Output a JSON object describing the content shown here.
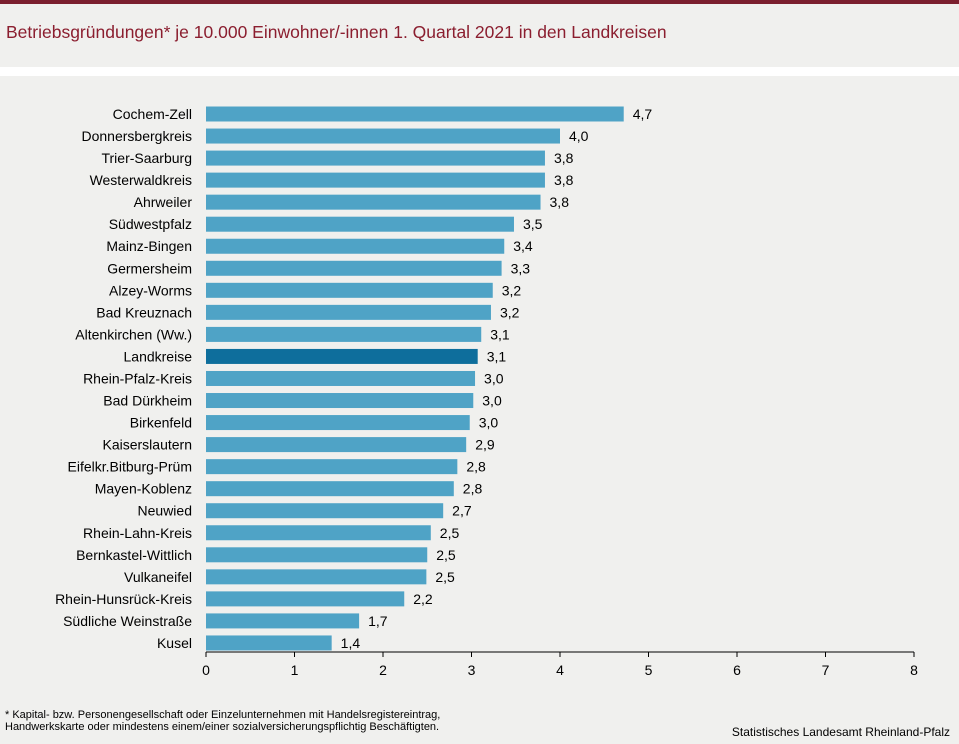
{
  "header": {
    "title": "Betriebsgründungen* je 10.000 Einwohner/-innen 1. Quartal 2021  in den Landkreisen"
  },
  "footer": {
    "footnote": "* Kapital- bzw. Personengesellschaft oder Einzelunternehmen mit Handelsregistereintrag,\nHandwerkskarte oder mindestens einem/einer sozialversicherungspflichtig Beschäftigten.",
    "source": "Statistisches Landesamt Rheinland-Pfalz"
  },
  "colors": {
    "bar": "#4fa3c6",
    "highlight": "#0e6e9c",
    "title": "#8b1e2f"
  },
  "chart_data": {
    "type": "bar",
    "orientation": "horizontal",
    "title": "Betriebsgründungen* je 10.000 Einwohner/-innen 1. Quartal 2021  in den Landkreisen",
    "xlabel": "",
    "ylabel": "",
    "xlim": [
      0,
      8
    ],
    "ticks": [
      0,
      1,
      2,
      3,
      4,
      5,
      6,
      7,
      8
    ],
    "grid": false,
    "highlight": "Landkreise",
    "categories": [
      "Cochem-Zell",
      "Donnersbergkreis",
      "Trier-Saarburg",
      "Westerwaldkreis",
      "Ahrweiler",
      "Südwestpfalz",
      "Mainz-Bingen",
      "Germersheim",
      "Alzey-Worms",
      "Bad Kreuznach",
      "Altenkirchen (Ww.)",
      "Landkreise",
      "Rhein-Pfalz-Kreis",
      "Bad Dürkheim",
      "Birkenfeld",
      "Kaiserslautern",
      "Eifelkr.Bitburg-Prüm",
      "Mayen-Koblenz",
      "Neuwied",
      "Rhein-Lahn-Kreis",
      "Bernkastel-Wittlich",
      "Vulkaneifel",
      "Rhein-Hunsrück-Kreis",
      "Südliche Weinstraße",
      "Kusel"
    ],
    "values": [
      4.72,
      4.0,
      3.83,
      3.83,
      3.78,
      3.48,
      3.37,
      3.34,
      3.24,
      3.22,
      3.11,
      3.07,
      3.04,
      3.02,
      2.98,
      2.94,
      2.84,
      2.8,
      2.68,
      2.54,
      2.5,
      2.49,
      2.24,
      1.73,
      1.42
    ],
    "labels": [
      "4,7",
      "4,0",
      "3,8",
      "3,8",
      "3,8",
      "3,5",
      "3,4",
      "3,3",
      "3,2",
      "3,2",
      "3,1",
      "3,1",
      "3,0",
      "3,0",
      "3,0",
      "2,9",
      "2,8",
      "2,8",
      "2,7",
      "2,5",
      "2,5",
      "2,5",
      "2,2",
      "1,7",
      "1,4"
    ]
  }
}
